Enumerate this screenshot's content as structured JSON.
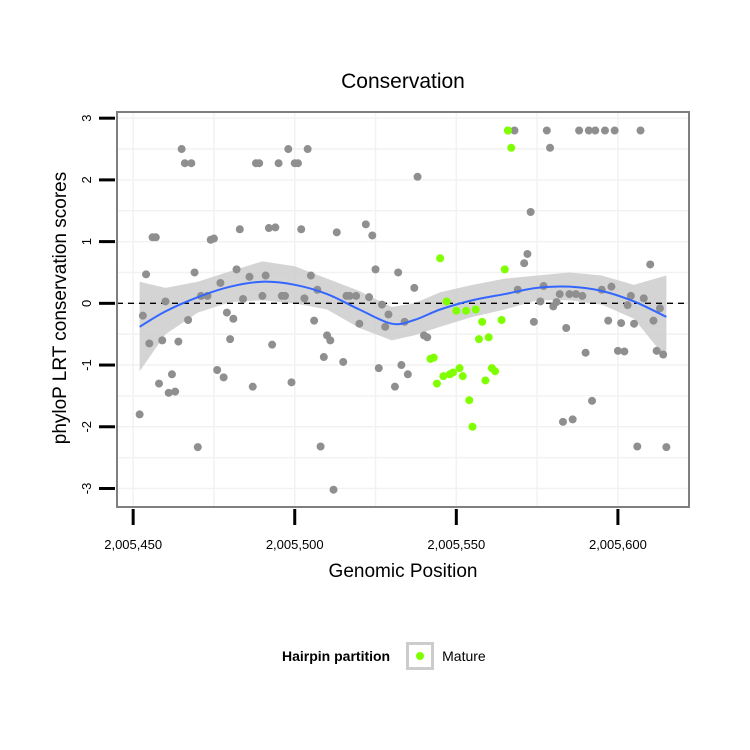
{
  "colors": {
    "grid": "#f2f2f2",
    "panel_border": "#7f7f7f",
    "axis": "#000000",
    "point_default": "#8f8f8f",
    "point_mature": "#7fff00",
    "smooth_line": "#3366ff",
    "ribbon": "#cccccc"
  },
  "chart_data": {
    "type": "scatter",
    "title": "Conservation",
    "xlabel": "Genomic Position",
    "ylabel": "phyloP LRT conservation scores",
    "xlim": [
      2005445,
      2005622
    ],
    "ylim": [
      -3.3,
      3.1
    ],
    "x_ticks": [
      2005450,
      2005500,
      2005550,
      2005600
    ],
    "x_tick_labels": [
      "2,005,450",
      "2,005,500",
      "2,005,550",
      "2,005,600"
    ],
    "y_ticks": [
      -3,
      -2,
      -1,
      0,
      1,
      2,
      3
    ],
    "y_tick_labels": [
      "-3",
      "-2",
      "-1",
      "0",
      "1",
      "2",
      "3"
    ],
    "reference_line": {
      "y": 0,
      "style": "dashed"
    },
    "grid": true,
    "legend": {
      "position": "bottom",
      "title": "Hairpin partition",
      "entries": [
        "Mature"
      ]
    },
    "series": [
      {
        "group": "other",
        "points": [
          [
            2005452,
            -1.8
          ],
          [
            2005453,
            -0.2
          ],
          [
            2005454,
            0.47
          ],
          [
            2005455,
            -0.65
          ],
          [
            2005456,
            1.07
          ],
          [
            2005457,
            1.07
          ],
          [
            2005458,
            -1.3
          ],
          [
            2005459,
            -0.6
          ],
          [
            2005460,
            0.03
          ],
          [
            2005461,
            -1.45
          ],
          [
            2005462,
            -1.15
          ],
          [
            2005463,
            -1.43
          ],
          [
            2005464,
            -0.62
          ],
          [
            2005465,
            2.5
          ],
          [
            2005466,
            2.27
          ],
          [
            2005467,
            -0.27
          ],
          [
            2005468,
            2.27
          ],
          [
            2005469,
            0.5
          ],
          [
            2005470,
            -2.33
          ],
          [
            2005471,
            0.12
          ],
          [
            2005473,
            0.12
          ],
          [
            2005474,
            1.03
          ],
          [
            2005475,
            1.05
          ],
          [
            2005476,
            -1.08
          ],
          [
            2005477,
            0.33
          ],
          [
            2005478,
            -1.2
          ],
          [
            2005479,
            -0.15
          ],
          [
            2005480,
            -0.58
          ],
          [
            2005481,
            -0.25
          ],
          [
            2005482,
            0.55
          ],
          [
            2005483,
            1.2
          ],
          [
            2005484,
            0.07
          ],
          [
            2005486,
            0.43
          ],
          [
            2005487,
            -1.35
          ],
          [
            2005488,
            2.27
          ],
          [
            2005489,
            2.27
          ],
          [
            2005490,
            0.12
          ],
          [
            2005491,
            0.45
          ],
          [
            2005492,
            1.22
          ],
          [
            2005493,
            -0.67
          ],
          [
            2005494,
            1.23
          ],
          [
            2005495,
            2.27
          ],
          [
            2005496,
            0.12
          ],
          [
            2005497,
            0.12
          ],
          [
            2005498,
            2.5
          ],
          [
            2005499,
            -1.28
          ],
          [
            2005500,
            2.27
          ],
          [
            2005501,
            2.27
          ],
          [
            2005502,
            1.2
          ],
          [
            2005503,
            0.08
          ],
          [
            2005504,
            2.5
          ],
          [
            2005505,
            0.45
          ],
          [
            2005506,
            -0.28
          ],
          [
            2005507,
            0.22
          ],
          [
            2005508,
            -2.32
          ],
          [
            2005509,
            -0.87
          ],
          [
            2005510,
            -0.52
          ],
          [
            2005511,
            -0.6
          ],
          [
            2005512,
            -3.02
          ],
          [
            2005513,
            1.15
          ],
          [
            2005515,
            -0.95
          ],
          [
            2005516,
            0.12
          ],
          [
            2005517,
            0.12
          ],
          [
            2005519,
            0.12
          ],
          [
            2005520,
            -0.33
          ],
          [
            2005522,
            1.28
          ],
          [
            2005523,
            0.1
          ],
          [
            2005524,
            1.1
          ],
          [
            2005525,
            0.55
          ],
          [
            2005526,
            -1.05
          ],
          [
            2005527,
            -0.02
          ],
          [
            2005528,
            -0.38
          ],
          [
            2005529,
            -0.18
          ],
          [
            2005531,
            -1.35
          ],
          [
            2005532,
            0.5
          ],
          [
            2005533,
            -1.0
          ],
          [
            2005534,
            -0.3
          ],
          [
            2005535,
            -1.15
          ],
          [
            2005537,
            0.25
          ],
          [
            2005538,
            2.05
          ],
          [
            2005540,
            -0.52
          ],
          [
            2005541,
            -0.55
          ],
          [
            2005566,
            2.8
          ],
          [
            2005568,
            2.8
          ],
          [
            2005569,
            0.22
          ],
          [
            2005571,
            0.65
          ],
          [
            2005572,
            0.8
          ],
          [
            2005573,
            1.48
          ],
          [
            2005574,
            -0.3
          ],
          [
            2005576,
            0.03
          ],
          [
            2005577,
            0.28
          ],
          [
            2005578,
            2.8
          ],
          [
            2005579,
            2.52
          ],
          [
            2005580,
            -0.05
          ],
          [
            2005581,
            0.02
          ],
          [
            2005582,
            0.15
          ],
          [
            2005583,
            -1.92
          ],
          [
            2005584,
            -0.4
          ],
          [
            2005585,
            0.15
          ],
          [
            2005586,
            -1.88
          ],
          [
            2005587,
            0.15
          ],
          [
            2005588,
            2.8
          ],
          [
            2005589,
            0.12
          ],
          [
            2005590,
            -0.8
          ],
          [
            2005591,
            2.8
          ],
          [
            2005592,
            -1.58
          ],
          [
            2005593,
            2.8
          ],
          [
            2005595,
            0.22
          ],
          [
            2005596,
            2.8
          ],
          [
            2005597,
            -0.28
          ],
          [
            2005598,
            0.27
          ],
          [
            2005599,
            2.8
          ],
          [
            2005600,
            -0.77
          ],
          [
            2005601,
            -0.32
          ],
          [
            2005602,
            -0.78
          ],
          [
            2005603,
            -0.03
          ],
          [
            2005604,
            0.12
          ],
          [
            2005605,
            -0.33
          ],
          [
            2005606,
            -2.32
          ],
          [
            2005607,
            2.8
          ],
          [
            2005608,
            0.08
          ],
          [
            2005610,
            0.63
          ],
          [
            2005611,
            -0.28
          ],
          [
            2005612,
            -0.77
          ],
          [
            2005613,
            -0.08
          ],
          [
            2005614,
            -0.83
          ],
          [
            2005615,
            -2.33
          ]
        ]
      },
      {
        "group": "Mature",
        "points": [
          [
            2005542,
            -0.9
          ],
          [
            2005543,
            -0.88
          ],
          [
            2005544,
            -1.3
          ],
          [
            2005545,
            0.73
          ],
          [
            2005546,
            -1.18
          ],
          [
            2005547,
            0.03
          ],
          [
            2005548,
            -1.15
          ],
          [
            2005549,
            -1.12
          ],
          [
            2005550,
            -0.12
          ],
          [
            2005551,
            -1.05
          ],
          [
            2005552,
            -1.18
          ],
          [
            2005553,
            -0.12
          ],
          [
            2005554,
            -1.57
          ],
          [
            2005555,
            -2.0
          ],
          [
            2005556,
            -0.1
          ],
          [
            2005557,
            -0.58
          ],
          [
            2005558,
            -0.3
          ],
          [
            2005559,
            -1.25
          ],
          [
            2005560,
            -0.55
          ],
          [
            2005561,
            -1.05
          ],
          [
            2005562,
            -1.1
          ],
          [
            2005564,
            -0.27
          ],
          [
            2005565,
            0.55
          ],
          [
            2005566,
            2.8
          ],
          [
            2005567,
            2.52
          ]
        ]
      }
    ],
    "smooth": {
      "x": [
        2005452,
        2005460,
        2005470,
        2005480,
        2005490,
        2005500,
        2005510,
        2005520,
        2005530,
        2005537,
        2005545,
        2005555,
        2005565,
        2005575,
        2005585,
        2005595,
        2005605,
        2005615
      ],
      "y": [
        -0.38,
        -0.13,
        0.1,
        0.27,
        0.35,
        0.3,
        0.15,
        -0.1,
        -0.33,
        -0.27,
        -0.1,
        0.05,
        0.15,
        0.25,
        0.27,
        0.2,
        0.03,
        -0.22
      ],
      "lower": [
        -1.1,
        -0.5,
        -0.15,
        0.02,
        0.05,
        0.0,
        -0.1,
        -0.4,
        -0.6,
        -0.52,
        -0.38,
        -0.22,
        -0.1,
        0.05,
        0.05,
        -0.02,
        -0.25,
        -0.9
      ],
      "upper": [
        0.35,
        0.25,
        0.35,
        0.52,
        0.68,
        0.6,
        0.4,
        0.2,
        -0.06,
        0.0,
        0.18,
        0.3,
        0.4,
        0.45,
        0.5,
        0.45,
        0.3,
        0.45
      ]
    }
  }
}
